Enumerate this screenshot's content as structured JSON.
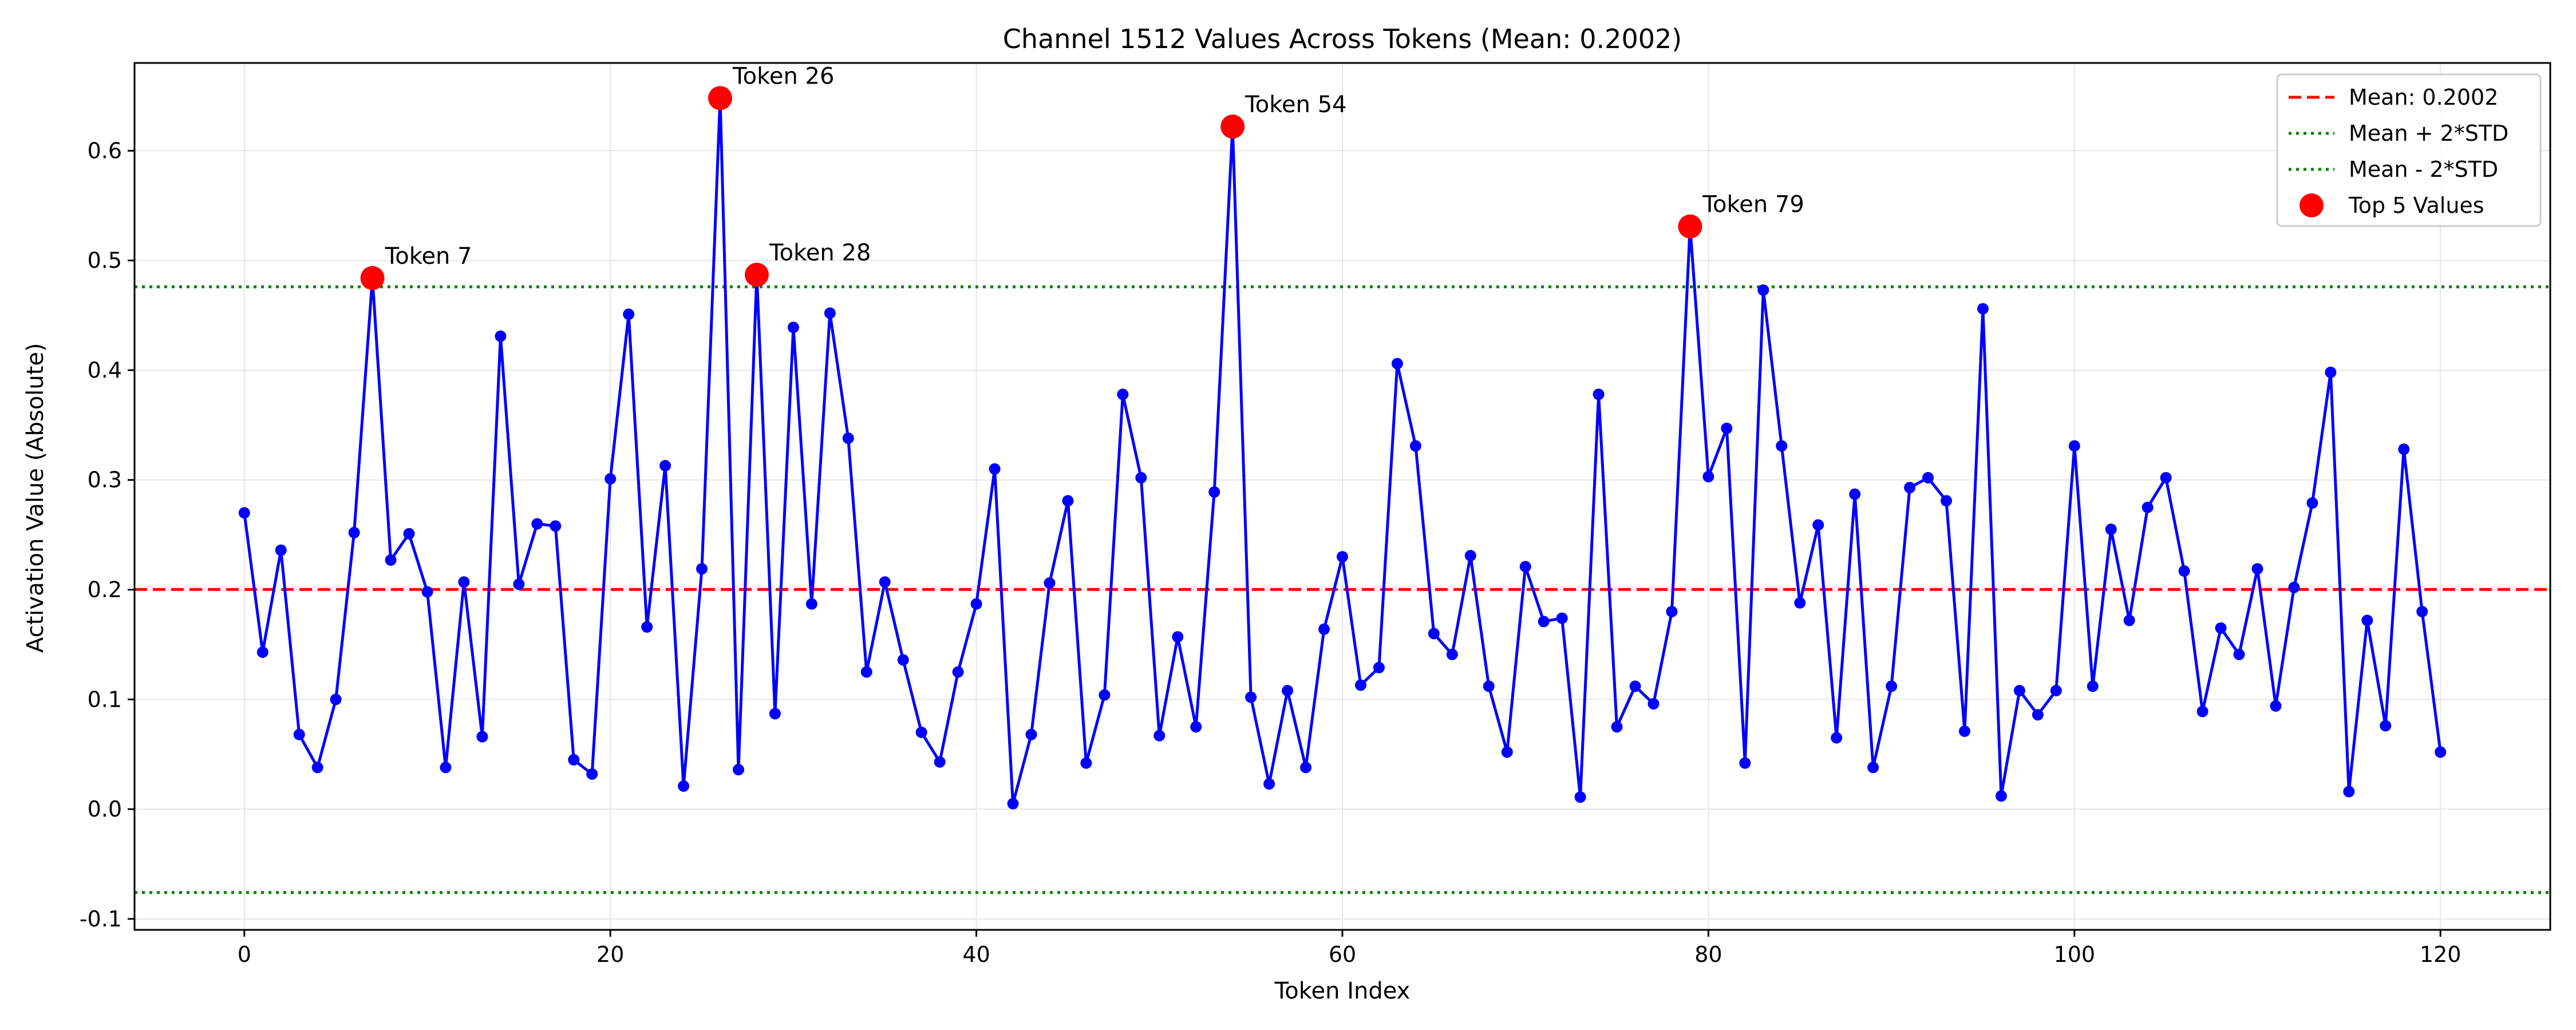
{
  "chart_data": {
    "type": "line",
    "title": "Channel 1512 Values Across Tokens (Mean: 0.2002)",
    "xlabel": "Token Index",
    "ylabel": "Activation Value (Absolute)",
    "xlim": [
      -6,
      126
    ],
    "ylim": [
      -0.11,
      0.68
    ],
    "xticks": [
      0,
      20,
      40,
      60,
      80,
      100,
      120
    ],
    "yticks": [
      -0.1,
      0.0,
      0.1,
      0.2,
      0.3,
      0.4,
      0.5,
      0.6
    ],
    "grid": true,
    "legend_position": "top-right",
    "mean": 0.2002,
    "upper_band": 0.476,
    "lower_band": -0.076,
    "colors": {
      "series": "#0000ff",
      "mean": "#ff0000",
      "bands": "#008000",
      "top": "#ff0000"
    },
    "legend": [
      {
        "label": "Mean: 0.2002",
        "style": "dashed-red"
      },
      {
        "label": "Mean + 2*STD",
        "style": "dotted-green"
      },
      {
        "label": "Mean - 2*STD",
        "style": "dotted-green"
      },
      {
        "label": "Top 5 Values",
        "style": "red-dot"
      }
    ],
    "series": [
      {
        "values": [
          0.27,
          0.143,
          0.236,
          0.068,
          0.038,
          0.1,
          0.252,
          0.484,
          0.227,
          0.251,
          0.198,
          0.038,
          0.207,
          0.066,
          0.431,
          0.205,
          0.26,
          0.258,
          0.045,
          0.032,
          0.301,
          0.451,
          0.166,
          0.313,
          0.021,
          0.219,
          0.648,
          0.036,
          0.487,
          0.087,
          0.439,
          0.187,
          0.452,
          0.338,
          0.125,
          0.207,
          0.136,
          0.07,
          0.043,
          0.125,
          0.187,
          0.31,
          0.005,
          0.068,
          0.206,
          0.281,
          0.042,
          0.104,
          0.378,
          0.302,
          0.067,
          0.157,
          0.075,
          0.289,
          0.622,
          0.102,
          0.023,
          0.108,
          0.038,
          0.164,
          0.23,
          0.113,
          0.129,
          0.406,
          0.331,
          0.16,
          0.141,
          0.231,
          0.112,
          0.052,
          0.221,
          0.171,
          0.174,
          0.011,
          0.378,
          0.075,
          0.112,
          0.096,
          0.18,
          0.531,
          0.303,
          0.347,
          0.042,
          0.473,
          0.331,
          0.188,
          0.259,
          0.065,
          0.287,
          0.038,
          0.112,
          0.293,
          0.302,
          0.281,
          0.071,
          0.456,
          0.012,
          0.108,
          0.086,
          0.108,
          0.331,
          0.112,
          0.255,
          0.172,
          0.275,
          0.302,
          0.217,
          0.089,
          0.165,
          0.141,
          0.219,
          0.094,
          0.202,
          0.279,
          0.398,
          0.016,
          0.172,
          0.076,
          0.328,
          0.18,
          0.052
        ]
      }
    ],
    "top_points": [
      {
        "x": 7,
        "y": 0.484,
        "label": "Token 7"
      },
      {
        "x": 26,
        "y": 0.648,
        "label": "Token 26"
      },
      {
        "x": 28,
        "y": 0.487,
        "label": "Token 28"
      },
      {
        "x": 54,
        "y": 0.622,
        "label": "Token 54"
      },
      {
        "x": 79,
        "y": 0.531,
        "label": "Token 79"
      }
    ]
  }
}
